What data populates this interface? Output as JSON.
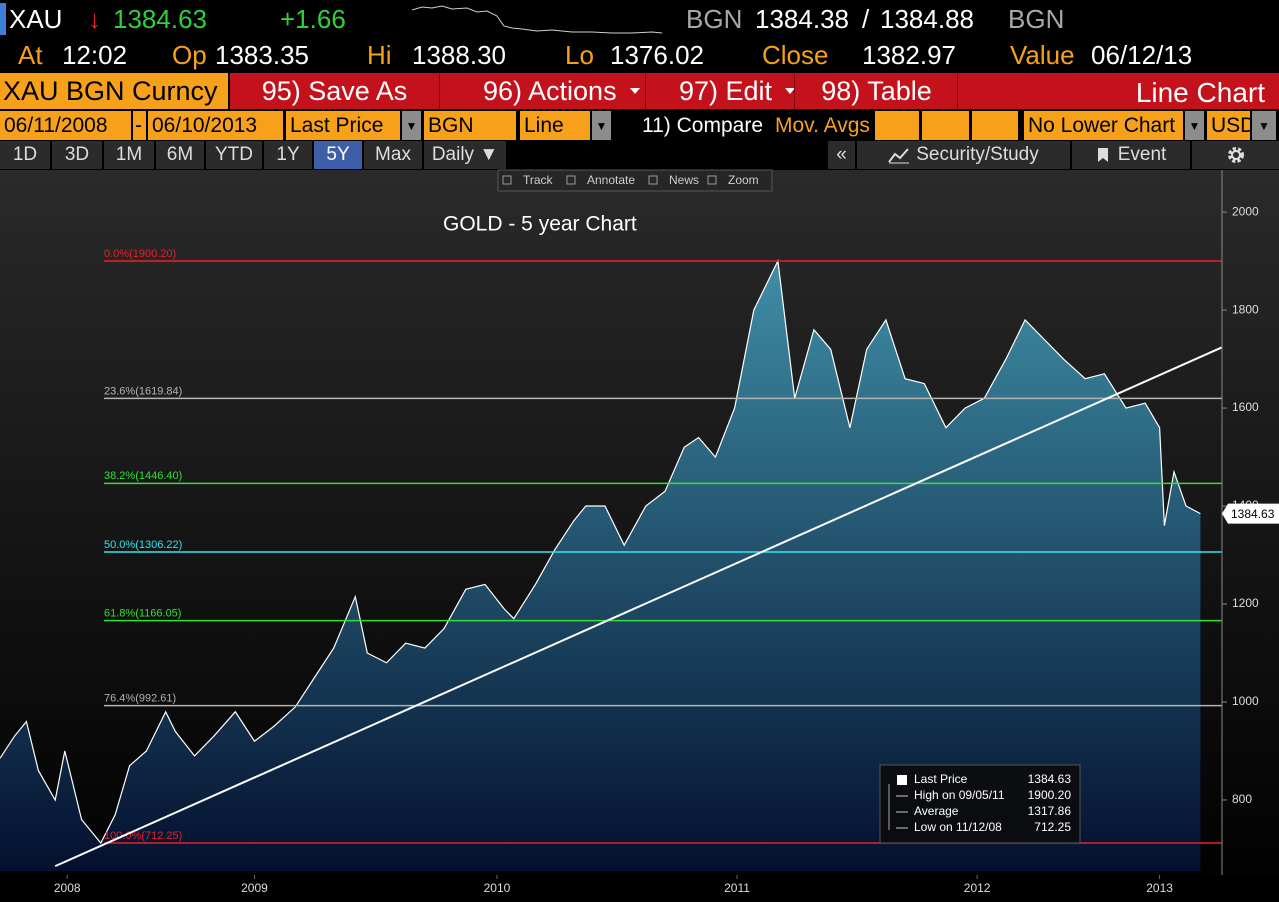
{
  "header": {
    "ticker": "XAU",
    "direction": "↓",
    "last": "1384.63",
    "change": "+1.66",
    "source_1": "BGN",
    "bid": "1384.38",
    "separator": "/",
    "ask": "1384.88",
    "source_2": "BGN",
    "at_label": "At",
    "at": "12:02",
    "open_label": "Op",
    "open": "1383.35",
    "high_label": "Hi",
    "high": "1388.30",
    "low_label": "Lo",
    "low": "1376.02",
    "close_label": "Close",
    "close": "1382.97",
    "value_label": "Value",
    "value_date": "06/12/13"
  },
  "menu": {
    "security": "XAU BGN Curncy",
    "save_as": "95) Save As",
    "actions": "96) Actions",
    "edit": "97) Edit",
    "table": "98) Table",
    "view": "Line Chart"
  },
  "settings": {
    "start": "06/11/2008",
    "dash": "-",
    "end": "06/10/2013",
    "field": "Last Price",
    "source": "BGN",
    "style": "Line",
    "compare": "11) Compare",
    "mov_avgs": "Mov. Avgs",
    "lower_chart": "No Lower Chart",
    "currency": "USD"
  },
  "tabs": {
    "periods": [
      "1D",
      "3D",
      "1M",
      "6M",
      "YTD",
      "1Y",
      "5Y",
      "Max",
      "Daily ▼"
    ],
    "selected": "5Y",
    "collapse": "«",
    "security_study": "Security/Study",
    "event": "Event"
  },
  "chart_tools": [
    "Track",
    "Annotate",
    "News",
    "Zoom"
  ],
  "chart_data": {
    "type": "area",
    "title": "GOLD - 5 year Chart",
    "color": "#ffffff",
    "fill_color": "#3f8ea6",
    "x": [
      2008.44,
      2008.5,
      2008.55,
      2008.6,
      2008.67,
      2008.71,
      2008.78,
      2008.86,
      2008.92,
      2008.98,
      2009.05,
      2009.13,
      2009.17,
      2009.25,
      2009.33,
      2009.42,
      2009.5,
      2009.58,
      2009.67,
      2009.75,
      2009.83,
      2009.92,
      2009.97,
      2010.05,
      2010.13,
      2010.21,
      2010.29,
      2010.38,
      2010.46,
      2010.54,
      2010.58,
      2010.67,
      2010.75,
      2010.83,
      2010.88,
      2010.96,
      2011.04,
      2011.13,
      2011.21,
      2011.29,
      2011.35,
      2011.42,
      2011.5,
      2011.58,
      2011.68,
      2011.75,
      2011.83,
      2011.9,
      2011.98,
      2012.05,
      2012.13,
      2012.21,
      2012.29,
      2012.38,
      2012.46,
      2012.54,
      2012.63,
      2012.71,
      2012.79,
      2012.87,
      2012.96,
      2013.04,
      2013.13,
      2013.21,
      2013.27,
      2013.29,
      2013.33,
      2013.38,
      2013.44
    ],
    "values": [
      885,
      930,
      960,
      860,
      800,
      900,
      760,
      712.25,
      770,
      870,
      900,
      980,
      940,
      890,
      930,
      980,
      920,
      950,
      990,
      1050,
      1110,
      1215,
      1100,
      1080,
      1120,
      1110,
      1150,
      1230,
      1240,
      1190,
      1170,
      1240,
      1310,
      1370,
      1400,
      1400,
      1320,
      1400,
      1430,
      1520,
      1540,
      1500,
      1600,
      1800,
      1900.2,
      1620,
      1760,
      1720,
      1560,
      1720,
      1780,
      1660,
      1650,
      1560,
      1600,
      1620,
      1700,
      1780,
      1740,
      1700,
      1660,
      1670,
      1600,
      1610,
      1560,
      1360,
      1470,
      1400,
      1384.63
    ],
    "xlim": [
      2008.44,
      2013.53
    ],
    "xticks": [
      {
        "value": 2008.72,
        "label": "2008"
      },
      {
        "value": 2009.5,
        "label": "2009"
      },
      {
        "value": 2010.51,
        "label": "2010"
      },
      {
        "value": 2011.51,
        "label": "2011"
      },
      {
        "value": 2012.51,
        "label": "2012"
      },
      {
        "value": 2013.27,
        "label": "2013"
      }
    ],
    "ylim": [
      655,
      2086
    ],
    "yticks": [
      800,
      1000,
      1200,
      1400,
      1600,
      1800,
      2000
    ],
    "fib_levels": [
      {
        "label": "0.0%(1900.20)",
        "value": 1900.2,
        "color": "#e8202a"
      },
      {
        "label": "23.6%(1619.84)",
        "value": 1619.84,
        "color": "#b4b4b4"
      },
      {
        "label": "38.2%(1446.40)",
        "value": 1446.4,
        "color": "#33e033"
      },
      {
        "label": "50.0%(1306.22)",
        "value": 1306.22,
        "color": "#2fe6f0"
      },
      {
        "label": "61.8%(1166.05)",
        "value": 1166.05,
        "color": "#33e033"
      },
      {
        "label": "76.4%(992.61)",
        "value": 992.61,
        "color": "#b4b4b4"
      },
      {
        "label": "100.0%(712.25)",
        "value": 712.25,
        "color": "#e8202a"
      }
    ],
    "trendline": {
      "x": [
        2008.67,
        2013.53
      ],
      "values": [
        665,
        1724
      ],
      "color": "#ffffff"
    },
    "legend": [
      {
        "label": "Last Price",
        "value": "1384.63"
      },
      {
        "label": "High on 09/05/11",
        "value": "1900.20"
      },
      {
        "label": "Average",
        "value": "1317.86"
      },
      {
        "label": "Low on 11/12/08",
        "value": "712.25"
      }
    ]
  }
}
